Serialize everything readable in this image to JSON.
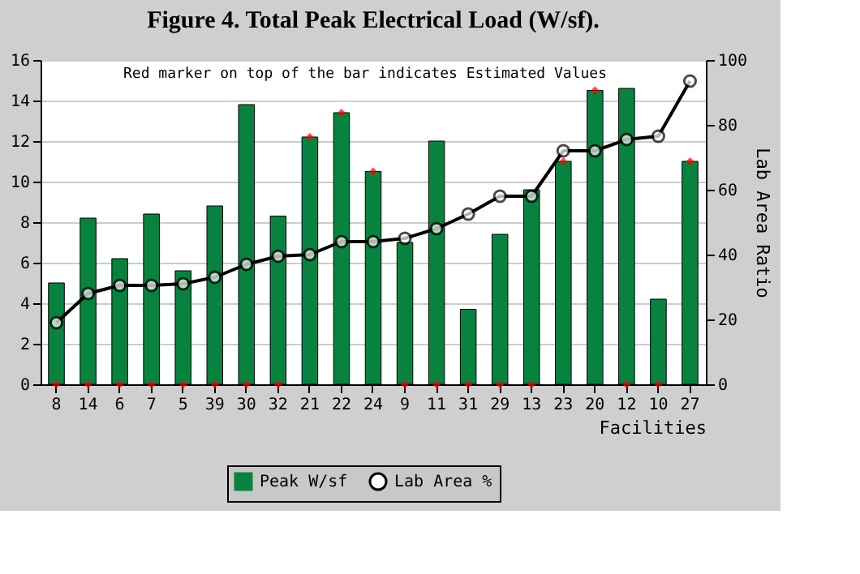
{
  "chart_data": {
    "type": "bar",
    "title": "Figure 4. Total Peak Electrical Load (W/sf).",
    "xlabel": "Facilities",
    "y2label": "Lab Area Ratio",
    "annotations": [
      "Red marker on top of the bar indicates Estimated Values"
    ],
    "categories": [
      "8",
      "14",
      "6",
      "7",
      "5",
      "39",
      "30",
      "32",
      "21",
      "22",
      "24",
      "9",
      "11",
      "31",
      "29",
      "13",
      "23",
      "20",
      "12",
      "10",
      "27"
    ],
    "series": [
      {
        "name": "Peak W/sf",
        "color": "#08833f",
        "values": [
          5.0,
          8.2,
          6.2,
          8.4,
          5.6,
          8.8,
          13.8,
          8.3,
          12.2,
          13.4,
          10.5,
          7.0,
          12.0,
          3.7,
          7.4,
          9.6,
          11.0,
          14.5,
          14.6,
          4.2,
          11.0
        ]
      },
      {
        "name": "Lab Area %",
        "type": "line",
        "axis": "y2",
        "color": "#000000",
        "marker": "circle",
        "values": [
          19,
          28,
          30.5,
          30.5,
          31,
          33,
          37,
          39.5,
          40,
          44,
          44,
          45,
          48,
          52.5,
          58,
          58,
          72,
          72,
          75.5,
          76.5,
          93.5
        ]
      },
      {
        "type": "scatter",
        "color": "#ff0000",
        "marker": "diamond",
        "values": [
          0,
          0,
          0,
          0,
          0,
          0,
          0,
          0,
          12.2,
          13.4,
          10.5,
          0,
          0,
          0,
          0,
          0,
          11.0,
          14.5,
          0,
          0,
          11.0
        ]
      }
    ],
    "ylim": [
      0,
      16
    ],
    "yticks": [
      0,
      2,
      4,
      6,
      8,
      10,
      12,
      14,
      16
    ],
    "y2lim": [
      0,
      100
    ],
    "y2ticks": [
      0,
      20,
      40,
      60,
      80,
      100
    ],
    "grid": "y",
    "legend": "bottom"
  }
}
